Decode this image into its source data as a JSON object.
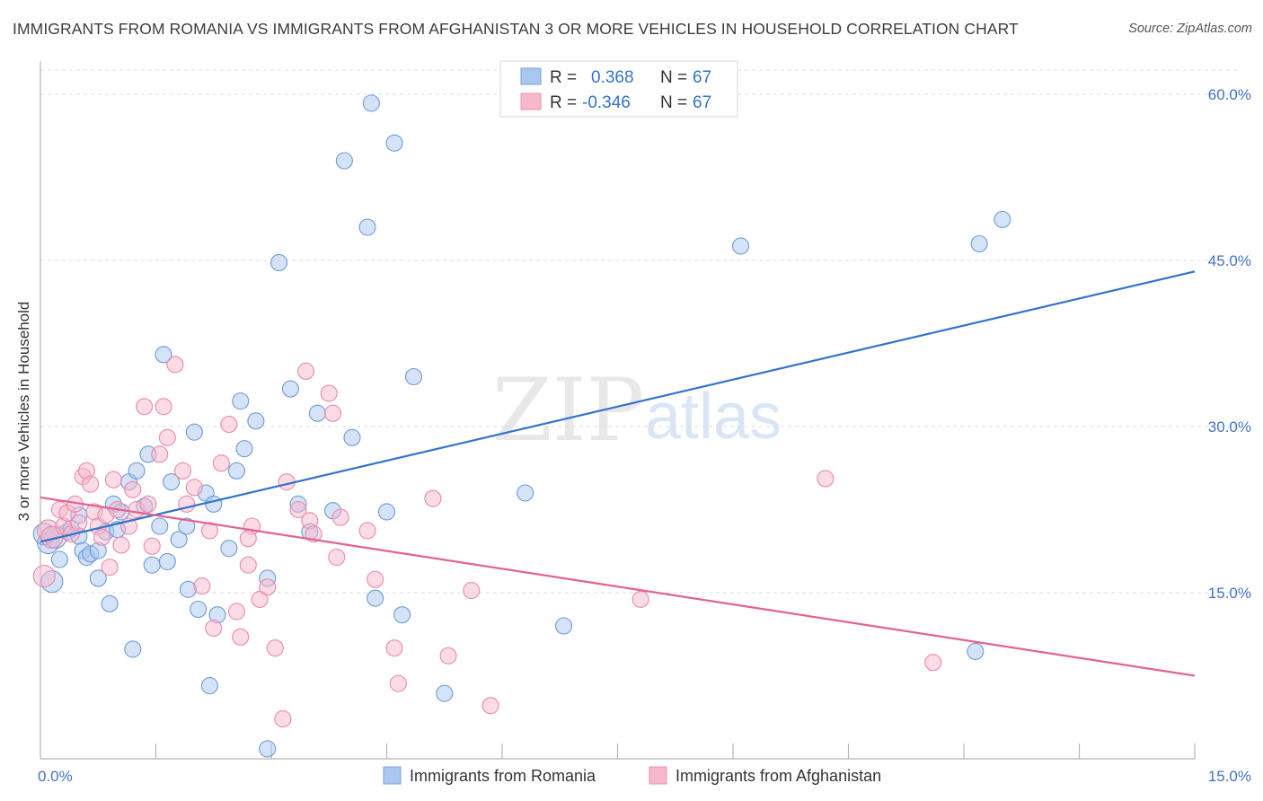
{
  "title": "IMMIGRANTS FROM ROMANIA VS IMMIGRANTS FROM AFGHANISTAN 3 OR MORE VEHICLES IN HOUSEHOLD CORRELATION CHART",
  "source": "Source: ZipAtlas.com",
  "watermark": {
    "zip": "ZIP",
    "atlas": "atlas"
  },
  "colors": {
    "romania_fill": "#aac7ef",
    "romania_line": "#3373cc",
    "afghanistan_fill": "#f7b8cb",
    "afghanistan_line": "#e3628f",
    "tick_text": "#4472c4",
    "grid": "#dcdcdc"
  },
  "legend_top": [
    {
      "r_label": "R =",
      "r_value": "0.368",
      "n_label": "N =",
      "n_value": "67"
    },
    {
      "r_label": "R =",
      "r_value": "-0.346",
      "n_label": "N =",
      "n_value": "67"
    }
  ],
  "chart_data": {
    "type": "scatter",
    "title": "IMMIGRANTS FROM ROMANIA VS IMMIGRANTS FROM AFGHANISTAN 3 OR MORE VEHICLES IN HOUSEHOLD CORRELATION CHART",
    "xlabel": "",
    "ylabel": "3 or more Vehicles in Household",
    "xlim": [
      0,
      15
    ],
    "ylim": [
      0,
      63
    ],
    "x_tick_labels": [
      "0.0%",
      "15.0%"
    ],
    "y_ticks": [
      15,
      30,
      45,
      60
    ],
    "y_tick_labels": [
      "15.0%",
      "30.0%",
      "45.0%",
      "60.0%"
    ],
    "grid": true,
    "legend_position": "bottom-center",
    "series": [
      {
        "name": "Immigrants from Romania",
        "color": "#aac7ef",
        "trendline": {
          "x": [
            0,
            15
          ],
          "y": [
            19.6,
            44.0
          ]
        },
        "points": [
          {
            "x": 0.1,
            "y": 19.5
          },
          {
            "x": 0.15,
            "y": 16.0
          },
          {
            "x": 0.25,
            "y": 18.0
          },
          {
            "x": 0.35,
            "y": 20.5
          },
          {
            "x": 0.4,
            "y": 20.8
          },
          {
            "x": 0.5,
            "y": 20.1
          },
          {
            "x": 0.5,
            "y": 22.0
          },
          {
            "x": 0.55,
            "y": 18.8
          },
          {
            "x": 0.6,
            "y": 18.2
          },
          {
            "x": 0.65,
            "y": 18.5
          },
          {
            "x": 0.75,
            "y": 18.8
          },
          {
            "x": 0.75,
            "y": 16.3
          },
          {
            "x": 0.85,
            "y": 20.5
          },
          {
            "x": 0.9,
            "y": 14.0
          },
          {
            "x": 0.95,
            "y": 23.0
          },
          {
            "x": 1.0,
            "y": 20.7
          },
          {
            "x": 1.05,
            "y": 22.3
          },
          {
            "x": 1.15,
            "y": 25.0
          },
          {
            "x": 1.2,
            "y": 9.9
          },
          {
            "x": 1.25,
            "y": 26.0
          },
          {
            "x": 1.35,
            "y": 22.8
          },
          {
            "x": 1.4,
            "y": 27.5
          },
          {
            "x": 1.45,
            "y": 17.5
          },
          {
            "x": 1.55,
            "y": 21.0
          },
          {
            "x": 1.6,
            "y": 36.5
          },
          {
            "x": 1.65,
            "y": 17.8
          },
          {
            "x": 1.7,
            "y": 25.0
          },
          {
            "x": 1.8,
            "y": 19.8
          },
          {
            "x": 1.9,
            "y": 21.0
          },
          {
            "x": 1.92,
            "y": 15.3
          },
          {
            "x": 2.0,
            "y": 29.5
          },
          {
            "x": 2.05,
            "y": 13.5
          },
          {
            "x": 2.15,
            "y": 24.0
          },
          {
            "x": 2.2,
            "y": 6.6
          },
          {
            "x": 2.25,
            "y": 23.0
          },
          {
            "x": 2.3,
            "y": 13.0
          },
          {
            "x": 2.45,
            "y": 19.0
          },
          {
            "x": 2.55,
            "y": 26.0
          },
          {
            "x": 2.6,
            "y": 32.3
          },
          {
            "x": 2.65,
            "y": 28.0
          },
          {
            "x": 2.8,
            "y": 30.5
          },
          {
            "x": 2.95,
            "y": 16.3
          },
          {
            "x": 2.95,
            "y": 0.9
          },
          {
            "x": 3.1,
            "y": 44.8
          },
          {
            "x": 3.25,
            "y": 33.4
          },
          {
            "x": 3.35,
            "y": 23.0
          },
          {
            "x": 3.5,
            "y": 20.5
          },
          {
            "x": 3.6,
            "y": 31.2
          },
          {
            "x": 3.8,
            "y": 22.4
          },
          {
            "x": 3.95,
            "y": 54.0
          },
          {
            "x": 4.05,
            "y": 29.0
          },
          {
            "x": 4.25,
            "y": 48.0
          },
          {
            "x": 4.3,
            "y": 59.2
          },
          {
            "x": 4.35,
            "y": 14.5
          },
          {
            "x": 4.5,
            "y": 22.3
          },
          {
            "x": 4.6,
            "y": 55.6
          },
          {
            "x": 4.7,
            "y": 13.0
          },
          {
            "x": 4.85,
            "y": 34.5
          },
          {
            "x": 5.25,
            "y": 5.9
          },
          {
            "x": 6.3,
            "y": 24.0
          },
          {
            "x": 6.8,
            "y": 12.0
          },
          {
            "x": 9.1,
            "y": 46.3
          },
          {
            "x": 12.2,
            "y": 46.5
          },
          {
            "x": 12.5,
            "y": 48.7
          },
          {
            "x": 12.15,
            "y": 9.7
          },
          {
            "x": 0.05,
            "y": 20.3
          },
          {
            "x": 0.2,
            "y": 20.0
          }
        ]
      },
      {
        "name": "Immigrants from Afghanistan",
        "color": "#f7b8cb",
        "trendline": {
          "x": [
            0,
            15
          ],
          "y": [
            23.6,
            7.5
          ]
        },
        "points": [
          {
            "x": 0.05,
            "y": 16.5
          },
          {
            "x": 0.1,
            "y": 20.6
          },
          {
            "x": 0.15,
            "y": 20.0
          },
          {
            "x": 0.25,
            "y": 22.5
          },
          {
            "x": 0.3,
            "y": 21.0
          },
          {
            "x": 0.35,
            "y": 22.2
          },
          {
            "x": 0.4,
            "y": 20.3
          },
          {
            "x": 0.45,
            "y": 23.0
          },
          {
            "x": 0.5,
            "y": 21.3
          },
          {
            "x": 0.55,
            "y": 25.5
          },
          {
            "x": 0.6,
            "y": 26.0
          },
          {
            "x": 0.65,
            "y": 24.8
          },
          {
            "x": 0.7,
            "y": 22.3
          },
          {
            "x": 0.75,
            "y": 21.0
          },
          {
            "x": 0.8,
            "y": 20.0
          },
          {
            "x": 0.85,
            "y": 22.0
          },
          {
            "x": 0.9,
            "y": 17.3
          },
          {
            "x": 0.95,
            "y": 25.2
          },
          {
            "x": 1.0,
            "y": 22.5
          },
          {
            "x": 1.05,
            "y": 19.3
          },
          {
            "x": 1.15,
            "y": 21.0
          },
          {
            "x": 1.2,
            "y": 24.3
          },
          {
            "x": 1.25,
            "y": 22.5
          },
          {
            "x": 1.35,
            "y": 31.8
          },
          {
            "x": 1.4,
            "y": 23.0
          },
          {
            "x": 1.45,
            "y": 19.2
          },
          {
            "x": 1.55,
            "y": 27.5
          },
          {
            "x": 1.6,
            "y": 31.8
          },
          {
            "x": 1.65,
            "y": 29.0
          },
          {
            "x": 1.75,
            "y": 35.6
          },
          {
            "x": 1.85,
            "y": 26.0
          },
          {
            "x": 1.9,
            "y": 23.0
          },
          {
            "x": 2.0,
            "y": 24.5
          },
          {
            "x": 2.1,
            "y": 15.6
          },
          {
            "x": 2.2,
            "y": 20.6
          },
          {
            "x": 2.25,
            "y": 11.8
          },
          {
            "x": 2.35,
            "y": 26.7
          },
          {
            "x": 2.45,
            "y": 30.2
          },
          {
            "x": 2.55,
            "y": 13.3
          },
          {
            "x": 2.6,
            "y": 11.0
          },
          {
            "x": 2.7,
            "y": 17.5
          },
          {
            "x": 2.75,
            "y": 21.0
          },
          {
            "x": 2.85,
            "y": 14.4
          },
          {
            "x": 2.95,
            "y": 15.5
          },
          {
            "x": 3.05,
            "y": 10.0
          },
          {
            "x": 3.15,
            "y": 3.6
          },
          {
            "x": 3.2,
            "y": 25.0
          },
          {
            "x": 3.35,
            "y": 22.5
          },
          {
            "x": 3.45,
            "y": 35.0
          },
          {
            "x": 3.5,
            "y": 21.5
          },
          {
            "x": 3.55,
            "y": 20.3
          },
          {
            "x": 3.75,
            "y": 33.0
          },
          {
            "x": 3.8,
            "y": 31.2
          },
          {
            "x": 3.85,
            "y": 18.2
          },
          {
            "x": 3.9,
            "y": 21.8
          },
          {
            "x": 4.25,
            "y": 20.6
          },
          {
            "x": 4.35,
            "y": 16.2
          },
          {
            "x": 4.6,
            "y": 10.0
          },
          {
            "x": 4.65,
            "y": 6.8
          },
          {
            "x": 5.1,
            "y": 23.5
          },
          {
            "x": 5.3,
            "y": 9.3
          },
          {
            "x": 5.6,
            "y": 15.2
          },
          {
            "x": 5.85,
            "y": 4.8
          },
          {
            "x": 7.8,
            "y": 14.4
          },
          {
            "x": 10.2,
            "y": 25.3
          },
          {
            "x": 11.6,
            "y": 8.7
          },
          {
            "x": 2.7,
            "y": 19.9
          }
        ]
      }
    ]
  }
}
